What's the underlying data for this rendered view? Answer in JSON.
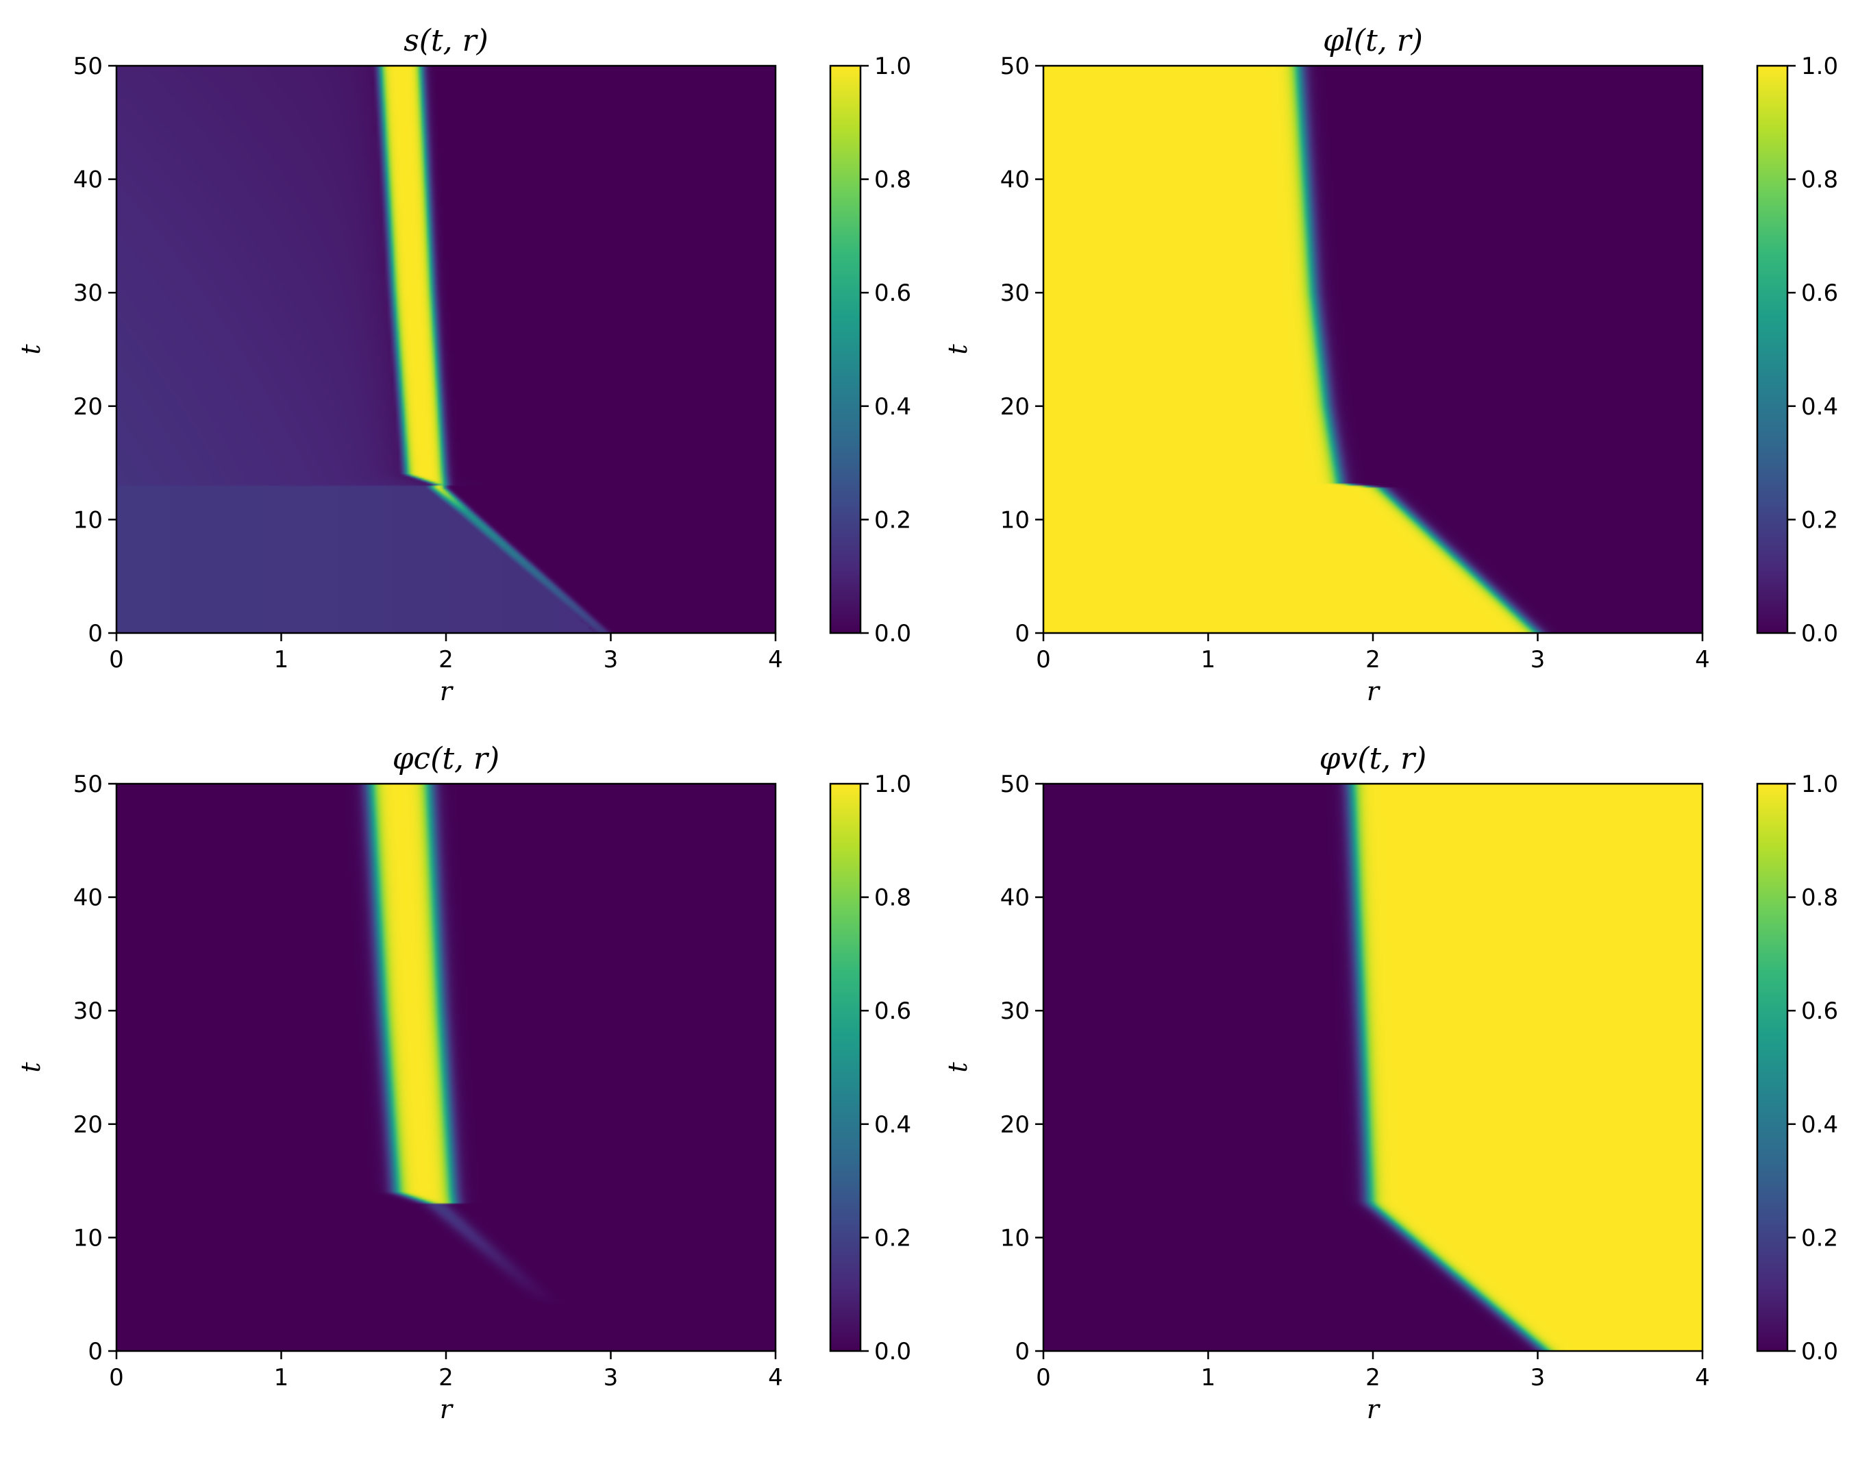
{
  "colormap": "viridis",
  "colormap_stops": [
    "#440154",
    "#482878",
    "#3e4989",
    "#31688e",
    "#26828e",
    "#1f9e89",
    "#35b779",
    "#6ece58",
    "#b5de2b",
    "#fde725"
  ],
  "chart_data": [
    {
      "type": "heatmap",
      "title": "s(t, r)",
      "field": "s",
      "xlabel": "r",
      "ylabel": "t",
      "xlim": [
        0,
        4
      ],
      "ylim": [
        0,
        50
      ],
      "xticks": [
        "0",
        "1",
        "2",
        "3",
        "4"
      ],
      "yticks": [
        "0",
        "10",
        "20",
        "30",
        "40",
        "50"
      ],
      "colorbar": {
        "range": [
          0,
          1
        ],
        "ticks": [
          "0.0",
          "0.2",
          "0.4",
          "0.6",
          "0.8",
          "1.0"
        ]
      }
    },
    {
      "type": "heatmap",
      "title": "φl(t, r)",
      "field": "phi_l",
      "xlabel": "r",
      "ylabel": "t",
      "xlim": [
        0,
        4
      ],
      "ylim": [
        0,
        50
      ],
      "xticks": [
        "0",
        "1",
        "2",
        "3",
        "4"
      ],
      "yticks": [
        "0",
        "10",
        "20",
        "30",
        "40",
        "50"
      ],
      "colorbar": {
        "range": [
          0,
          1
        ],
        "ticks": [
          "0.0",
          "0.2",
          "0.4",
          "0.6",
          "0.8",
          "1.0"
        ]
      }
    },
    {
      "type": "heatmap",
      "title": "φc(t, r)",
      "field": "phi_c",
      "xlabel": "r",
      "ylabel": "t",
      "xlim": [
        0,
        4
      ],
      "ylim": [
        0,
        50
      ],
      "xticks": [
        "0",
        "1",
        "2",
        "3",
        "4"
      ],
      "yticks": [
        "0",
        "10",
        "20",
        "30",
        "40",
        "50"
      ],
      "colorbar": {
        "range": [
          0,
          1
        ],
        "ticks": [
          "0.0",
          "0.2",
          "0.4",
          "0.6",
          "0.8",
          "1.0"
        ]
      }
    },
    {
      "type": "heatmap",
      "title": "φv(t, r)",
      "field": "phi_v",
      "xlabel": "r",
      "ylabel": "t",
      "xlim": [
        0,
        4
      ],
      "ylim": [
        0,
        50
      ],
      "xticks": [
        "0",
        "1",
        "2",
        "3",
        "4"
      ],
      "yticks": [
        "0",
        "10",
        "20",
        "30",
        "40",
        "50"
      ],
      "colorbar": {
        "range": [
          0,
          1
        ],
        "ticks": [
          "0.0",
          "0.2",
          "0.4",
          "0.6",
          "0.8",
          "1.0"
        ]
      }
    }
  ]
}
